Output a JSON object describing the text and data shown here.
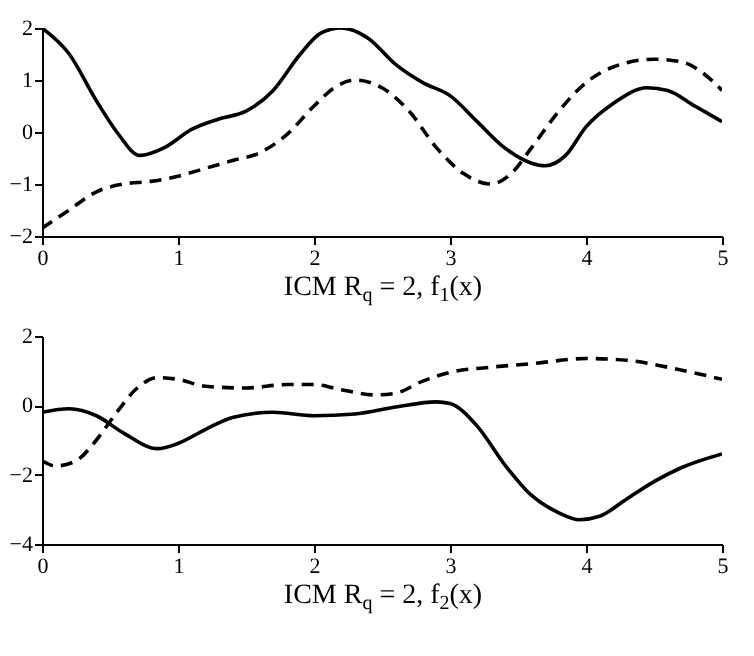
{
  "chart_data": [
    {
      "type": "line",
      "xlabel": "ICM R$_{q}$ = 2, f$_{1}$(x)",
      "xlim": [
        0,
        5
      ],
      "xticks": [
        0,
        1,
        2,
        3,
        4,
        5
      ],
      "ylim": [
        -2,
        2
      ],
      "yticks": [
        -2,
        -1,
        0,
        1,
        2
      ],
      "series": [
        {
          "color": "#000000",
          "line_style": "solid",
          "x": [
            0,
            0.2,
            0.4,
            0.55,
            0.72,
            0.9,
            1.1,
            1.3,
            1.5,
            1.7,
            1.9,
            2.05,
            2.2,
            2.4,
            2.6,
            2.8,
            3.0,
            3.2,
            3.4,
            3.6,
            3.7,
            3.85,
            4.0,
            4.2,
            4.45,
            4.6,
            4.8,
            5
          ],
          "values": [
            2,
            1.5,
            0.6,
            0,
            -0.45,
            -0.3,
            0.05,
            0.25,
            0.4,
            0.8,
            1.5,
            1.9,
            2.0,
            1.8,
            1.3,
            0.95,
            0.7,
            0.2,
            -0.3,
            -0.6,
            -0.65,
            -0.45,
            0.1,
            0.55,
            0.85,
            0.8,
            0.5,
            0.2
          ]
        },
        {
          "color": "#000000",
          "line_style": "dashed",
          "x": [
            0,
            0.2,
            0.4,
            0.6,
            0.8,
            1.0,
            1.2,
            1.4,
            1.6,
            1.8,
            2.0,
            2.15,
            2.3,
            2.5,
            2.7,
            2.9,
            3.1,
            3.3,
            3.45,
            3.6,
            3.8,
            4.0,
            4.2,
            4.5,
            4.7,
            4.9,
            5
          ],
          "values": [
            -1.85,
            -1.5,
            -1.15,
            -1.0,
            -0.95,
            -0.85,
            -0.7,
            -0.55,
            -0.4,
            -0.05,
            0.5,
            0.85,
            1.0,
            0.85,
            0.4,
            -0.3,
            -0.8,
            -1.0,
            -0.8,
            -0.3,
            0.4,
            0.95,
            1.25,
            1.4,
            1.35,
            1.05,
            0.8
          ]
        }
      ]
    },
    {
      "type": "line",
      "xlabel": "ICM R$_{q}$ = 2, f$_{2}$(x)",
      "xlim": [
        0,
        5
      ],
      "xticks": [
        0,
        1,
        2,
        3,
        4,
        5
      ],
      "ylim": [
        -4,
        2
      ],
      "yticks": [
        -4,
        -2,
        0,
        2
      ],
      "series": [
        {
          "color": "#000000",
          "line_style": "solid",
          "x": [
            0,
            0.2,
            0.4,
            0.6,
            0.85,
            1.0,
            1.2,
            1.4,
            1.7,
            2.0,
            2.3,
            2.6,
            2.9,
            3.0,
            3.2,
            3.4,
            3.6,
            3.8,
            3.95,
            4.1,
            4.3,
            4.5,
            4.7,
            5
          ],
          "values": [
            -0.2,
            -0.1,
            -0.3,
            -0.8,
            -1.25,
            -1.1,
            -0.7,
            -0.35,
            -0.2,
            -0.3,
            -0.25,
            -0.05,
            0.1,
            0.05,
            -0.6,
            -1.7,
            -2.6,
            -3.1,
            -3.3,
            -3.2,
            -2.7,
            -2.2,
            -1.8,
            -1.4
          ]
        },
        {
          "color": "#000000",
          "line_style": "dashed",
          "x": [
            0,
            0.1,
            0.25,
            0.4,
            0.55,
            0.7,
            0.85,
            1.0,
            1.2,
            1.5,
            1.8,
            2.0,
            2.2,
            2.45,
            2.6,
            2.8,
            3.0,
            3.3,
            3.6,
            4.0,
            4.3,
            4.6,
            5
          ],
          "values": [
            -1.6,
            -1.75,
            -1.6,
            -1.0,
            -0.2,
            0.5,
            0.8,
            0.75,
            0.55,
            0.5,
            0.6,
            0.6,
            0.45,
            0.3,
            0.35,
            0.7,
            0.95,
            1.1,
            1.2,
            1.35,
            1.3,
            1.1,
            0.75
          ]
        }
      ]
    }
  ]
}
